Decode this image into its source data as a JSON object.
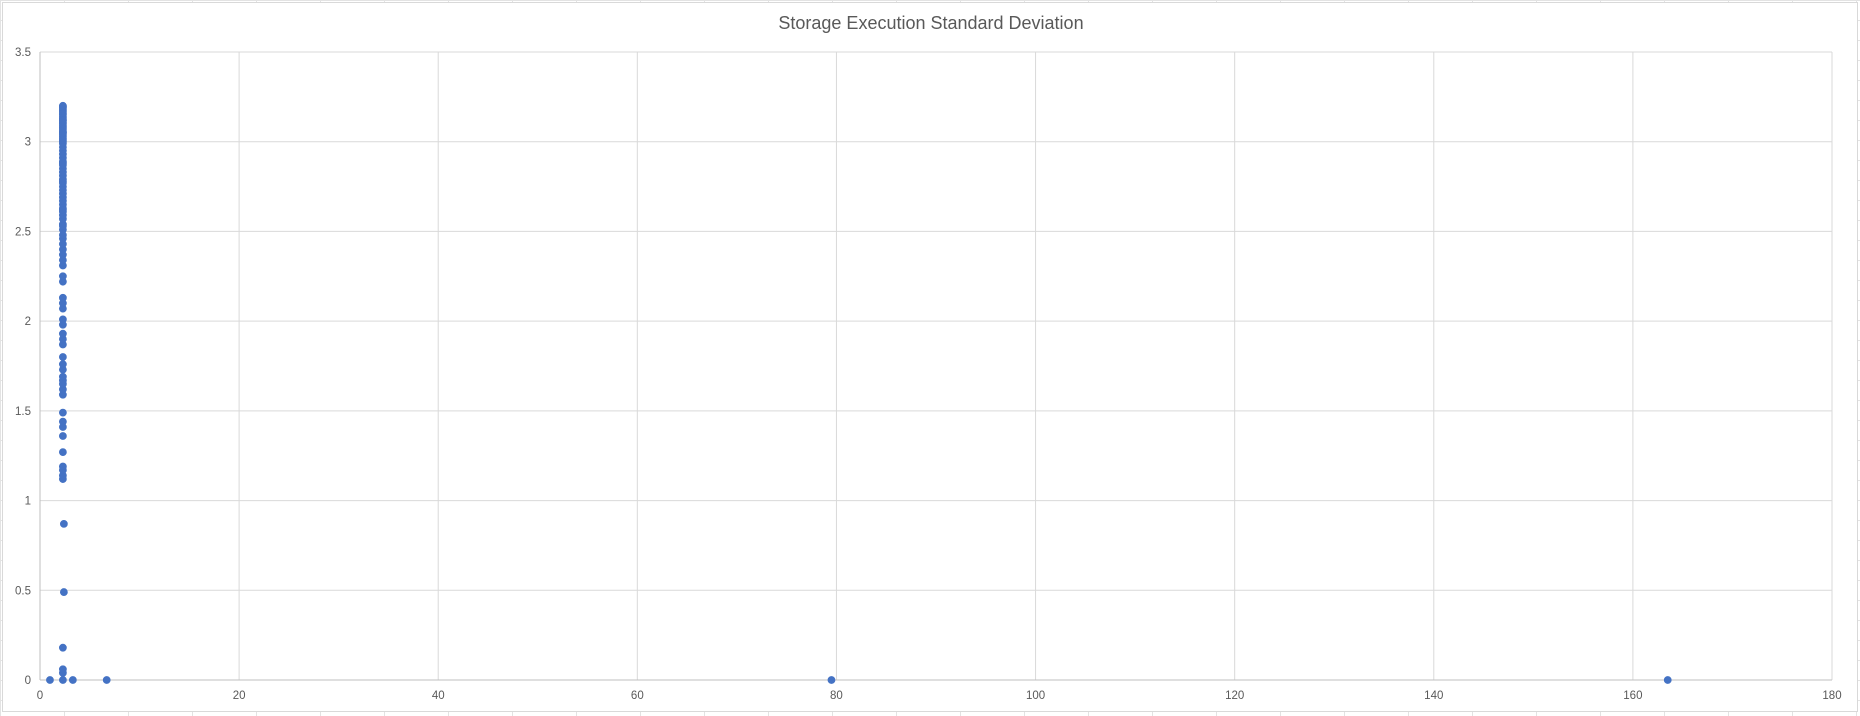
{
  "chart_data": {
    "type": "scatter",
    "title": "Storage Execution Standard Deviation",
    "xlabel": "",
    "ylabel": "",
    "xlim": [
      0,
      180
    ],
    "ylim": [
      0,
      3.5
    ],
    "x_ticks": [
      0,
      20,
      40,
      60,
      80,
      100,
      120,
      140,
      160,
      180
    ],
    "y_ticks": [
      0,
      0.5,
      1,
      1.5,
      2,
      2.5,
      3,
      3.5
    ],
    "grid": true,
    "legend": "none",
    "marker_color": "#4472c4",
    "series": [
      {
        "x": [
          1,
          2.3,
          3.3,
          6.7,
          79.5,
          163.5,
          2.3,
          2.3,
          2.3,
          2.4,
          2.4,
          2.3,
          2.3,
          2.3,
          2.3,
          2.3,
          2.3,
          2.3,
          2.3,
          2.3,
          2.3,
          2.3,
          2.3,
          2.3,
          2.3,
          2.3,
          2.3,
          2.3,
          2.3,
          2.3,
          2.3,
          2.3,
          2.3,
          2.3,
          2.3,
          2.3,
          2.3,
          2.3,
          2.3,
          2.3,
          2.3,
          2.3,
          2.3,
          2.3,
          2.3,
          2.3,
          2.3,
          2.3,
          2.3,
          2.3,
          2.3,
          2.3,
          2.3,
          2.3,
          2.3,
          2.3,
          2.3,
          2.3,
          2.3,
          2.3,
          2.3,
          2.3,
          2.3,
          2.3,
          2.3,
          2.3,
          2.3,
          2.3,
          2.3,
          2.3,
          2.3,
          2.3,
          2.3,
          2.3,
          2.3,
          2.3,
          2.3,
          2.3,
          2.3,
          2.3,
          2.3,
          2.3,
          2.3,
          2.3,
          2.3,
          2.3,
          2.3,
          2.3,
          2.3,
          2.3,
          2.3,
          2.3,
          2.3,
          2.3,
          2.3,
          2.3,
          2.3
        ],
        "y": [
          0,
          0,
          0,
          0,
          0,
          0,
          0.04,
          0.06,
          0.18,
          0.49,
          0.87,
          1.12,
          1.14,
          1.17,
          1.19,
          1.27,
          1.36,
          1.41,
          1.44,
          1.49,
          1.59,
          1.62,
          1.65,
          1.67,
          1.69,
          1.73,
          1.76,
          1.8,
          1.87,
          1.9,
          1.93,
          1.98,
          2.01,
          2.07,
          2.1,
          2.13,
          2.22,
          2.25,
          2.31,
          2.34,
          2.37,
          2.4,
          2.43,
          2.46,
          2.48,
          2.51,
          2.54,
          2.57,
          2.59,
          2.61,
          2.63,
          2.65,
          2.67,
          2.69,
          2.71,
          2.73,
          2.75,
          2.77,
          2.79,
          2.81,
          2.83,
          2.85,
          2.87,
          2.89,
          2.91,
          2.93,
          2.95,
          2.97,
          2.99,
          3.0,
          3.01,
          3.02,
          3.03,
          3.04,
          3.05,
          3.06,
          3.07,
          3.08,
          3.09,
          3.1,
          3.11,
          3.12,
          3.13,
          3.14,
          3.15,
          3.16,
          3.17,
          3.18,
          3.19,
          3.195,
          3.2,
          2.53,
          2.62,
          2.78,
          2.88,
          3.05,
          3.12
        ]
      }
    ]
  }
}
